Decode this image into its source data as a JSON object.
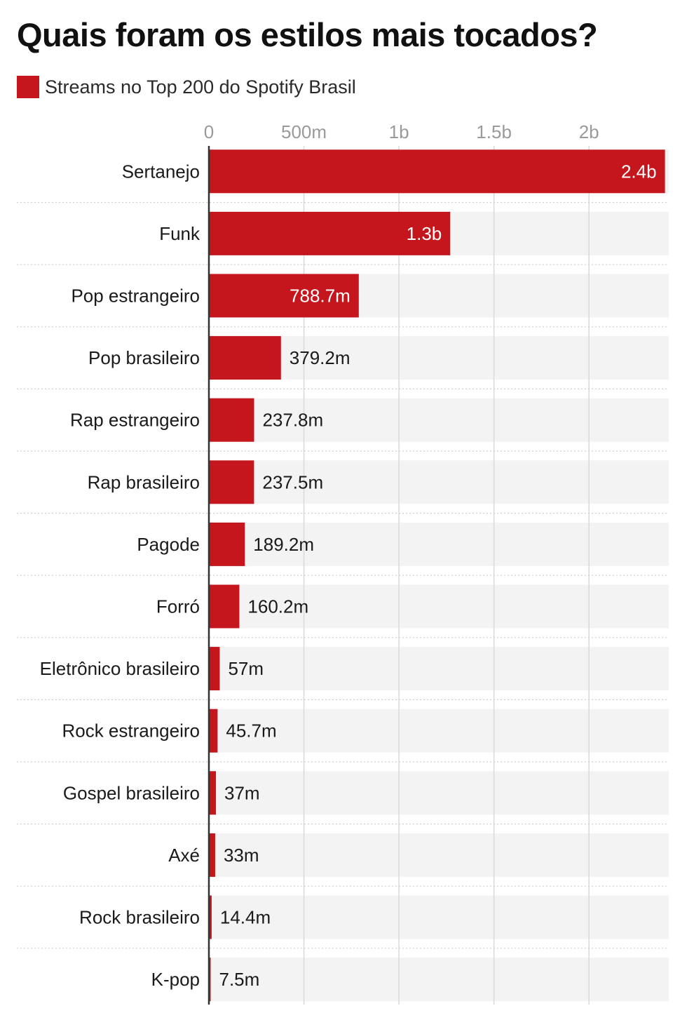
{
  "title": "Quais foram os estilos mais tocados?",
  "legend": {
    "label": "Streams no Top 200 do Spotify Brasil",
    "color": "#c4161c"
  },
  "colors": {
    "bar": "#c4161c",
    "track": "#f3f3f3",
    "grid": "#d9d9d9",
    "axis": "#333333",
    "tick_text": "#9a9a9a",
    "label_inside": "#ffffff",
    "label_outside": "#1a1a1a",
    "separator": "#cfcfcf"
  },
  "chart_data": {
    "type": "bar",
    "orientation": "horizontal",
    "title": "Quais foram os estilos mais tocados?",
    "series": [
      {
        "name": "Streams no Top 200 do Spotify Brasil",
        "values": [
          2400000000,
          1270000000,
          788700000,
          379200000,
          237800000,
          237500000,
          189200000,
          160200000,
          57000000,
          45700000,
          37000000,
          33000000,
          14400000,
          7500000
        ]
      }
    ],
    "categories": [
      "Sertanejo",
      "Funk",
      "Pop estrangeiro",
      "Pop brasileiro",
      "Rap estrangeiro",
      "Rap brasileiro",
      "Pagode",
      "Forró",
      "Eletrônico brasileiro",
      "Rock estrangeiro",
      "Gospel brasileiro",
      "Axé",
      "Rock brasileiro",
      "K-pop"
    ],
    "value_labels": [
      "2.4b",
      "1.3b",
      "788.7m",
      "379.2m",
      "237.8m",
      "237.5m",
      "189.2m",
      "160.2m",
      "57m",
      "45.7m",
      "37m",
      "33m",
      "14.4m",
      "7.5m"
    ],
    "x_ticks": [
      {
        "value": 0,
        "label": "0"
      },
      {
        "value": 500000000,
        "label": "500m"
      },
      {
        "value": 1000000000,
        "label": "1b"
      },
      {
        "value": 1500000000,
        "label": "1.5b"
      },
      {
        "value": 2000000000,
        "label": "2b"
      }
    ],
    "xlim": [
      0,
      2420000000
    ],
    "grid": true,
    "xlabel": "",
    "ylabel": ""
  }
}
